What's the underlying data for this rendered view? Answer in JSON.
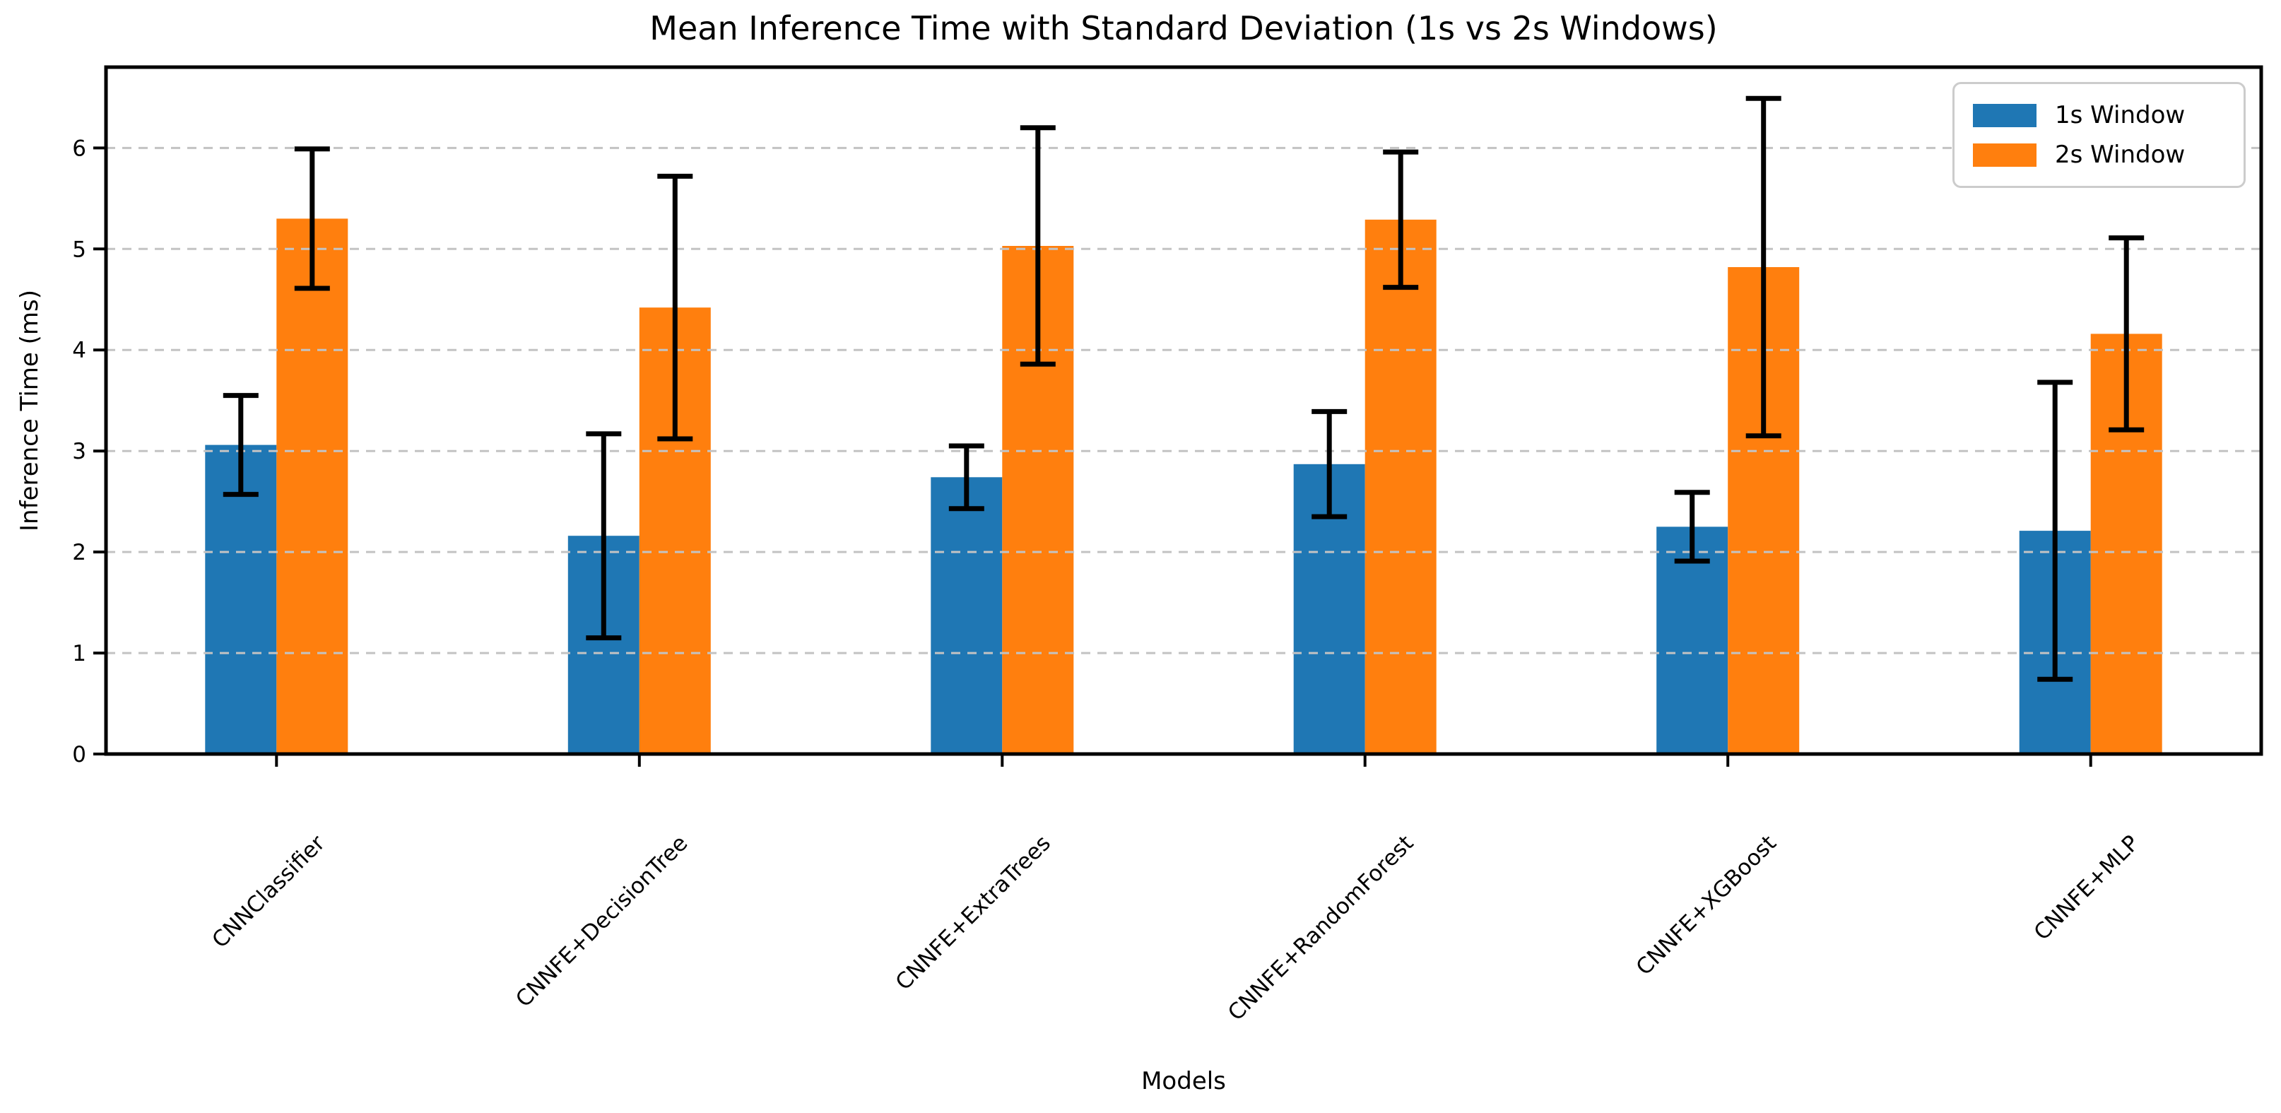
{
  "chart_data": {
    "type": "bar",
    "title": "Mean Inference Time with Standard Deviation (1s vs 2s Windows)",
    "xlabel": "Models",
    "ylabel": "Inference Time (ms)",
    "categories": [
      "CNNClassifier",
      "CNNFE+DecisionTree",
      "CNNFE+ExtraTrees",
      "CNNFE+RandomForest",
      "CNNFE+XGBoost",
      "CNNFE+MLP"
    ],
    "series": [
      {
        "name": "1s Window",
        "color": "#1f77b4",
        "values": [
          3.06,
          2.16,
          2.74,
          2.87,
          2.25,
          2.21
        ],
        "std": [
          0.49,
          1.01,
          0.31,
          0.52,
          0.34,
          1.47
        ]
      },
      {
        "name": "2s Window",
        "color": "#ff7f0e",
        "values": [
          5.3,
          4.42,
          5.03,
          5.29,
          4.82,
          4.16
        ],
        "std": [
          0.69,
          1.3,
          1.17,
          0.67,
          1.67,
          0.95
        ]
      }
    ],
    "ylim": [
      0,
      6.8
    ],
    "yticks": [
      0,
      1,
      2,
      3,
      4,
      5,
      6
    ],
    "grid": {
      "axis": "y",
      "style": "dashed",
      "color": "#c3c3c3"
    },
    "legend_position": "upper-right",
    "error_bar_color": "#000000",
    "axis_color": "#000000",
    "background": "#ffffff"
  }
}
